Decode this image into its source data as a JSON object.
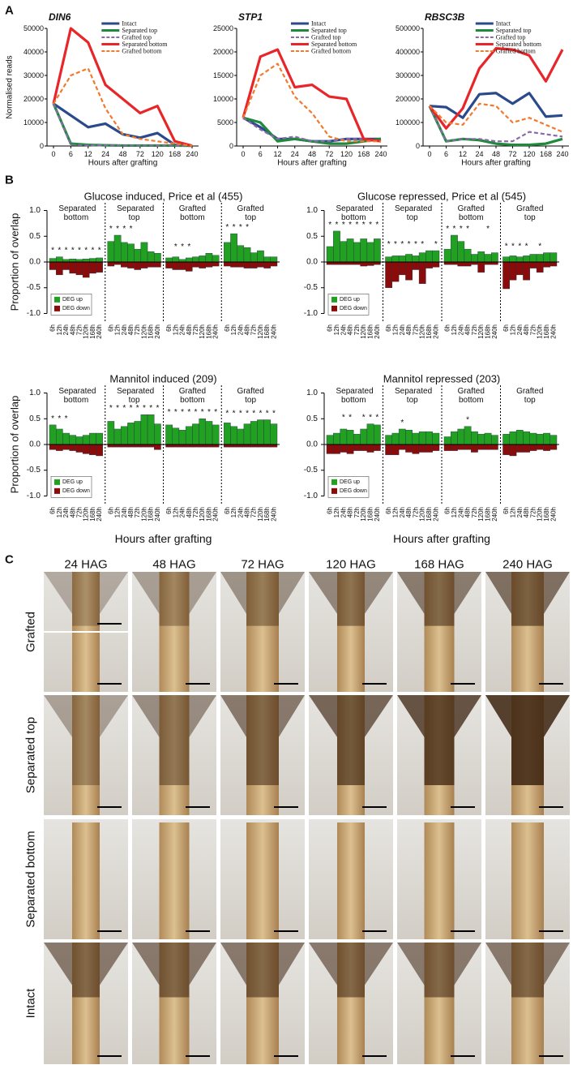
{
  "panel_labels": [
    "A",
    "B",
    "C"
  ],
  "chart_data": [
    {
      "type": "line",
      "title": "DIN6",
      "y_label": "Normalised reads",
      "x_label": "Hours after grafting",
      "categories": [
        "0",
        "6",
        "12",
        "24",
        "48",
        "72",
        "120",
        "168",
        "240"
      ],
      "ylim": [
        0,
        50000
      ],
      "yticks": [
        0,
        10000,
        20000,
        30000,
        40000,
        50000
      ],
      "series": [
        {
          "name": "Intact",
          "color": "#2b4a8b",
          "dashed": false,
          "values": [
            18000,
            13000,
            8000,
            9500,
            5000,
            3500,
            5500,
            500,
            100
          ]
        },
        {
          "name": "Separated top",
          "color": "#1f8a3c",
          "dashed": false,
          "values": [
            18000,
            1000,
            500,
            300,
            200,
            200,
            200,
            200,
            100
          ]
        },
        {
          "name": "Grafted top",
          "color": "#8a6aaa",
          "dashed": true,
          "values": [
            18000,
            500,
            300,
            300,
            200,
            200,
            200,
            200,
            100
          ]
        },
        {
          "name": "Separated bottom",
          "color": "#e8262a",
          "dashed": false,
          "values": [
            18000,
            50000,
            44000,
            26000,
            20000,
            14000,
            17000,
            2000,
            100
          ]
        },
        {
          "name": "Grafted bottom",
          "color": "#f07a2e",
          "dashed": true,
          "values": [
            18000,
            30000,
            33000,
            16000,
            5000,
            3000,
            2000,
            1000,
            100
          ]
        }
      ]
    },
    {
      "type": "line",
      "title": "STP1",
      "x_label": "Hours after grafting",
      "categories": [
        "0",
        "6",
        "12",
        "24",
        "48",
        "72",
        "120",
        "168",
        "240"
      ],
      "ylim": [
        0,
        25000
      ],
      "yticks": [
        0,
        5000,
        10000,
        15000,
        20000,
        25000
      ],
      "series": [
        {
          "name": "Intact",
          "color": "#2b4a8b",
          "dashed": false,
          "values": [
            6000,
            4000,
            1500,
            1500,
            1000,
            1000,
            1500,
            1500,
            1500
          ]
        },
        {
          "name": "Separated top",
          "color": "#1f8a3c",
          "dashed": false,
          "values": [
            6000,
            5000,
            1000,
            1500,
            1000,
            500,
            500,
            1000,
            1500
          ]
        },
        {
          "name": "Grafted top",
          "color": "#8a6aaa",
          "dashed": true,
          "values": [
            6000,
            3500,
            1500,
            2000,
            1000,
            1000,
            1500,
            1500,
            1000
          ]
        },
        {
          "name": "Separated bottom",
          "color": "#e8262a",
          "dashed": false,
          "values": [
            6000,
            19000,
            20500,
            12500,
            13000,
            10500,
            10000,
            1500,
            1000
          ]
        },
        {
          "name": "Grafted bottom",
          "color": "#f07a2e",
          "dashed": true,
          "values": [
            6000,
            15000,
            17500,
            10500,
            7000,
            2000,
            1000,
            1000,
            1000
          ]
        }
      ]
    },
    {
      "type": "line",
      "title": "RBSC3B",
      "x_label": "Hours after grafting",
      "categories": [
        "0",
        "6",
        "12",
        "24",
        "48",
        "72",
        "120",
        "168",
        "240"
      ],
      "ylim": [
        0,
        500000
      ],
      "yticks": [
        0,
        100000,
        200000,
        300000,
        400000,
        500000
      ],
      "series": [
        {
          "name": "Intact",
          "color": "#2b4a8b",
          "dashed": false,
          "values": [
            170000,
            165000,
            120000,
            220000,
            225000,
            180000,
            225000,
            125000,
            130000
          ]
        },
        {
          "name": "Separated top",
          "color": "#1f8a3c",
          "dashed": false,
          "values": [
            170000,
            20000,
            30000,
            25000,
            10000,
            5000,
            5000,
            10000,
            30000
          ]
        },
        {
          "name": "Grafted top",
          "color": "#8a6aaa",
          "dashed": true,
          "values": [
            170000,
            20000,
            30000,
            30000,
            20000,
            20000,
            60000,
            50000,
            40000
          ]
        },
        {
          "name": "Separated bottom",
          "color": "#e8262a",
          "dashed": false,
          "values": [
            170000,
            75000,
            160000,
            330000,
            415000,
            410000,
            385000,
            275000,
            410000
          ]
        },
        {
          "name": "Grafted bottom",
          "color": "#f07a2e",
          "dashed": true,
          "values": [
            170000,
            100000,
            90000,
            180000,
            170000,
            100000,
            120000,
            90000,
            60000
          ]
        }
      ]
    },
    {
      "type": "bar",
      "title": "Glucose induced, Price et al (455)",
      "y_label": "Proportion of overlap",
      "groups": [
        "Separated bottom",
        "Separated top",
        "Grafted bottom",
        "Grafted top"
      ],
      "categories": [
        "6h",
        "12h",
        "24h",
        "48h",
        "72h",
        "120h",
        "168h",
        "240h"
      ],
      "ylim": [
        -1.15,
        1.15
      ],
      "yticks": [
        {
          "value": -1,
          "label": "-1.0"
        },
        -0.5,
        {
          "value": 0,
          "label": "0.0"
        },
        0.5,
        {
          "value": 1,
          "label": "1.0"
        }
      ],
      "series": [
        {
          "name": "DEG up",
          "color": "#22a022",
          "values": [
            [
              0.07,
              0.1,
              0.05,
              0.06,
              0.05,
              0.06,
              0.07,
              0.08
            ],
            [
              0.4,
              0.52,
              0.38,
              0.35,
              0.25,
              0.38,
              0.2,
              0.17
            ],
            [
              0.08,
              0.1,
              0.05,
              0.08,
              0.1,
              0.12,
              0.17,
              0.13
            ],
            [
              0.38,
              0.55,
              0.32,
              0.28,
              0.18,
              0.22,
              0.1,
              0.1
            ]
          ]
        },
        {
          "name": "DEG down",
          "color": "#8b0a0a",
          "values": [
            [
              -0.15,
              -0.25,
              -0.15,
              -0.22,
              -0.25,
              -0.3,
              -0.22,
              -0.2
            ],
            [
              -0.08,
              -0.05,
              -0.1,
              -0.12,
              -0.15,
              -0.12,
              -0.1,
              -0.1
            ],
            [
              -0.12,
              -0.15,
              -0.15,
              -0.18,
              -0.1,
              -0.12,
              -0.1,
              -0.08
            ],
            [
              -0.08,
              -0.1,
              -0.1,
              -0.12,
              -0.12,
              -0.1,
              -0.12,
              -0.08
            ]
          ]
        }
      ],
      "stars": [
        [
          "*",
          "*",
          "*",
          "*",
          "*",
          "*",
          "*",
          "*"
        ],
        [
          "*",
          "*",
          "*",
          "*",
          null,
          null,
          null,
          null
        ],
        [
          null,
          "*",
          "*",
          "*",
          null,
          null,
          null,
          null
        ],
        [
          "*",
          "*",
          "*",
          "*",
          null,
          null,
          null,
          null
        ]
      ]
    },
    {
      "type": "bar",
      "title": "Glucose repressed, Price et al (545)",
      "groups": [
        "Separated bottom",
        "Separated top",
        "Grafted bottom",
        "Grafted top"
      ],
      "categories": [
        "6h",
        "12h",
        "24h",
        "48h",
        "72h",
        "120h",
        "168h",
        "240h"
      ],
      "ylim": [
        -1.15,
        1.15
      ],
      "yticks": [
        {
          "value": -1,
          "label": "-1.0"
        },
        -0.5,
        {
          "value": 0,
          "label": "0.0"
        },
        0.5,
        {
          "value": 1,
          "label": "1.0"
        }
      ],
      "series": [
        {
          "name": "DEG up",
          "color": "#22a022",
          "values": [
            [
              0.3,
              0.6,
              0.4,
              0.45,
              0.38,
              0.45,
              0.38,
              0.45
            ],
            [
              0.1,
              0.12,
              0.12,
              0.15,
              0.12,
              0.18,
              0.22,
              0.22
            ],
            [
              0.25,
              0.52,
              0.4,
              0.25,
              0.15,
              0.2,
              0.15,
              0.18
            ],
            [
              0.1,
              0.12,
              0.1,
              0.12,
              0.15,
              0.15,
              0.18,
              0.18
            ]
          ]
        },
        {
          "name": "DEG down",
          "color": "#8b0a0a",
          "values": [
            [
              -0.05,
              -0.05,
              -0.05,
              -0.05,
              -0.05,
              -0.08,
              -0.07,
              -0.05
            ],
            [
              -0.5,
              -0.38,
              -0.25,
              -0.35,
              -0.15,
              -0.42,
              -0.12,
              -0.1
            ],
            [
              -0.05,
              -0.05,
              -0.08,
              -0.08,
              -0.05,
              -0.2,
              -0.05,
              -0.05
            ],
            [
              -0.52,
              -0.35,
              -0.25,
              -0.35,
              -0.12,
              -0.2,
              -0.1,
              -0.08
            ]
          ]
        }
      ],
      "stars": [
        [
          "*",
          "*",
          "*",
          "*",
          "*",
          "*",
          "*",
          "*"
        ],
        [
          "*",
          "*",
          "*",
          "*",
          "*",
          "*",
          null,
          "*"
        ],
        [
          "*",
          "*",
          "*",
          "*",
          null,
          null,
          "*",
          null
        ],
        [
          "*",
          "*",
          "*",
          "*",
          null,
          "*",
          null,
          null
        ]
      ]
    },
    {
      "type": "bar",
      "title": "Mannitol induced (209)",
      "y_label": "Proportion of overlap",
      "x_label": "Hours after grafting",
      "groups": [
        "Separated bottom",
        "Separated top",
        "Grafted bottom",
        "Grafted top"
      ],
      "categories": [
        "6h",
        "12h",
        "24h",
        "48h",
        "72h",
        "120h",
        "168h",
        "240h"
      ],
      "ylim": [
        -1.15,
        1.15
      ],
      "yticks": [
        {
          "value": -1,
          "label": "-1.0"
        },
        -0.5,
        {
          "value": 0,
          "label": "0.0"
        },
        0.5,
        {
          "value": 1,
          "label": "1.0"
        }
      ],
      "series": [
        {
          "name": "DEG up",
          "color": "#22a022",
          "values": [
            [
              0.38,
              0.3,
              0.22,
              0.18,
              0.15,
              0.18,
              0.22,
              0.22
            ],
            [
              0.45,
              0.3,
              0.35,
              0.42,
              0.45,
              0.58,
              0.58,
              0.4
            ],
            [
              0.38,
              0.32,
              0.28,
              0.35,
              0.4,
              0.5,
              0.45,
              0.38
            ],
            [
              0.42,
              0.35,
              0.3,
              0.4,
              0.45,
              0.48,
              0.48,
              0.4
            ]
          ]
        },
        {
          "name": "DEG down",
          "color": "#8b0a0a",
          "values": [
            [
              -0.1,
              -0.12,
              -0.1,
              -0.12,
              -0.15,
              -0.18,
              -0.2,
              -0.22
            ],
            [
              -0.05,
              -0.05,
              -0.05,
              -0.05,
              -0.05,
              -0.05,
              -0.05,
              -0.1
            ],
            [
              -0.05,
              -0.05,
              -0.05,
              -0.05,
              -0.05,
              -0.05,
              -0.05,
              -0.05
            ],
            [
              -0.05,
              -0.05,
              -0.05,
              -0.05,
              -0.05,
              -0.05,
              -0.05,
              -0.05
            ]
          ]
        }
      ],
      "stars": [
        [
          "*",
          "*",
          "*",
          null,
          null,
          null,
          null,
          null
        ],
        [
          "*",
          "*",
          "*",
          "*",
          "*",
          "*",
          "*",
          "*"
        ],
        [
          "*",
          "*",
          "*",
          "*",
          "*",
          "*",
          "*",
          "*"
        ],
        [
          "*",
          "*",
          "*",
          "*",
          "*",
          "*",
          "*",
          "*"
        ]
      ]
    },
    {
      "type": "bar",
      "title": "Mannitol repressed (203)",
      "x_label": "Hours after grafting",
      "groups": [
        "Separated bottom",
        "Separated top",
        "Grafted bottom",
        "Grafted top"
      ],
      "categories": [
        "6h",
        "12h",
        "24h",
        "48h",
        "72h",
        "120h",
        "168h",
        "240h"
      ],
      "ylim": [
        -1.15,
        1.15
      ],
      "yticks": [
        {
          "value": -1,
          "label": "-1.0"
        },
        -0.5,
        {
          "value": 0,
          "label": "0.0"
        },
        0.5,
        {
          "value": 1,
          "label": "1.0"
        }
      ],
      "series": [
        {
          "name": "DEG up",
          "color": "#22a022",
          "values": [
            [
              0.18,
              0.22,
              0.3,
              0.28,
              0.2,
              0.3,
              0.4,
              0.38
            ],
            [
              0.18,
              0.22,
              0.3,
              0.28,
              0.22,
              0.25,
              0.25,
              0.22
            ],
            [
              0.15,
              0.25,
              0.3,
              0.35,
              0.25,
              0.2,
              0.22,
              0.18
            ],
            [
              0.2,
              0.25,
              0.28,
              0.25,
              0.22,
              0.2,
              0.22,
              0.18
            ]
          ]
        },
        {
          "name": "DEG down",
          "color": "#8b0a0a",
          "values": [
            [
              -0.18,
              -0.18,
              -0.15,
              -0.18,
              -0.12,
              -0.12,
              -0.15,
              -0.12
            ],
            [
              -0.2,
              -0.2,
              -0.1,
              -0.15,
              -0.18,
              -0.15,
              -0.15,
              -0.12
            ],
            [
              -0.12,
              -0.12,
              -0.1,
              -0.1,
              -0.15,
              -0.1,
              -0.1,
              -0.1
            ],
            [
              -0.2,
              -0.22,
              -0.15,
              -0.15,
              -0.12,
              -0.1,
              -0.12,
              -0.1
            ]
          ]
        }
      ],
      "stars": [
        [
          null,
          null,
          "*",
          "*",
          null,
          "*",
          "*",
          "*"
        ],
        [
          null,
          null,
          "*",
          null,
          null,
          null,
          null,
          null
        ],
        [
          null,
          null,
          null,
          "*",
          null,
          null,
          null,
          null
        ],
        [
          null,
          null,
          null,
          null,
          null,
          null,
          null,
          null
        ]
      ]
    }
  ],
  "photo_grid": {
    "columns": [
      "24 HAG",
      "48 HAG",
      "72 HAG",
      "120 HAG",
      "168 HAG",
      "240 HAG"
    ],
    "rows": [
      "Grafted",
      "Separated top",
      "Separated bottom",
      "Intact"
    ]
  }
}
